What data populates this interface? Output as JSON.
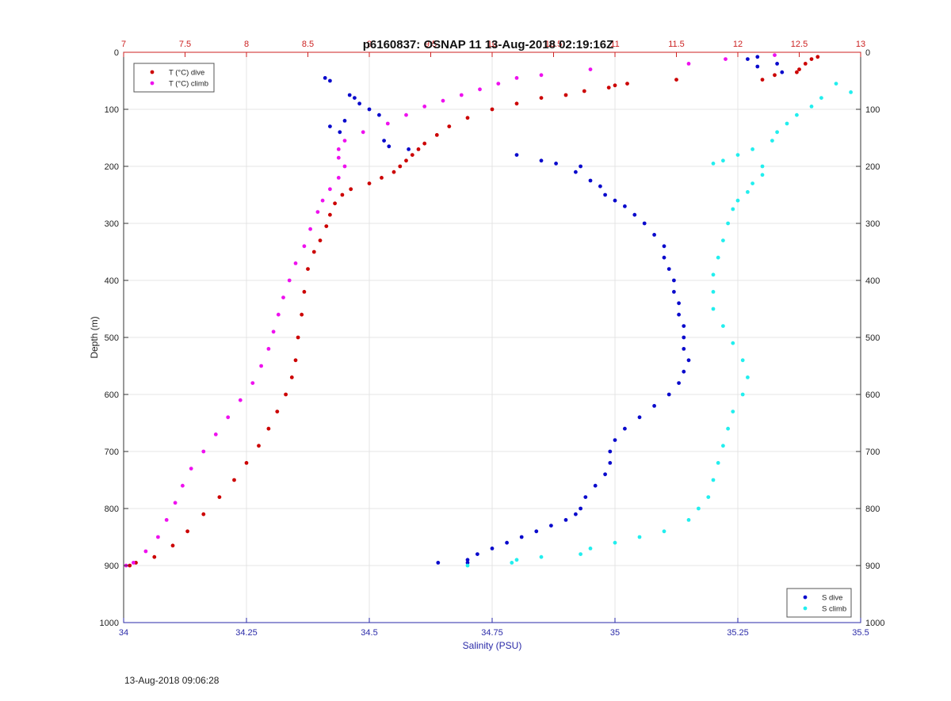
{
  "footer_timestamp": "13-Aug-2018 09:06:28",
  "chart_data": {
    "type": "scatter",
    "title": "p6160837: OSNAP 11 13-Aug-2018 02:19:16Z",
    "ylabel": "Depth (m)",
    "xlabel_bottom": "Salinity (PSU)",
    "xlabel_top": "",
    "ylim": [
      0,
      1000
    ],
    "y_reversed": true,
    "xlim_bottom": [
      34,
      35.5
    ],
    "xlim_top": [
      7,
      13
    ],
    "y_ticks": [
      "0",
      "100",
      "200",
      "300",
      "400",
      "500",
      "600",
      "700",
      "800",
      "900",
      "1000"
    ],
    "bottom_ticks": [
      "34",
      "34.25",
      "34.5",
      "34.75",
      "35",
      "35.25",
      "35.5"
    ],
    "top_ticks": [
      "7",
      "7.5",
      "8",
      "8.5",
      "9",
      "9.5",
      "10",
      "10.5",
      "11",
      "11.5",
      "12",
      "12.5",
      "13"
    ],
    "grid": true,
    "colors": {
      "t_dive": "#cc0000",
      "t_climb": "#ee11ee",
      "s_dive": "#0a0acc",
      "s_climb": "#22eeee",
      "bottom_axis": "#2a2aa8",
      "top_axis": "#cc2222",
      "grid": "#e4e4e4"
    },
    "legend_top_left": {
      "placement": "top-left",
      "entries": [
        {
          "label": "T (°C) dive",
          "series": "t_dive"
        },
        {
          "label": "T (°C) climb",
          "series": "t_climb"
        }
      ]
    },
    "legend_bottom_right": {
      "placement": "bottom-right",
      "entries": [
        {
          "label": "S dive",
          "series": "s_dive"
        },
        {
          "label": "S climb",
          "series": "s_climb"
        }
      ]
    },
    "series": [
      {
        "key": "t_dive",
        "name": "T (°C) dive",
        "axis": "top",
        "points": [
          [
            12.65,
            8
          ],
          [
            12.6,
            12
          ],
          [
            12.55,
            20
          ],
          [
            12.5,
            30
          ],
          [
            12.48,
            35
          ],
          [
            12.3,
            40
          ],
          [
            12.2,
            48
          ],
          [
            11.5,
            48
          ],
          [
            11.1,
            55
          ],
          [
            11.0,
            58
          ],
          [
            10.95,
            62
          ],
          [
            10.75,
            68
          ],
          [
            10.6,
            75
          ],
          [
            10.4,
            80
          ],
          [
            10.2,
            90
          ],
          [
            10.0,
            100
          ],
          [
            9.8,
            115
          ],
          [
            9.65,
            130
          ],
          [
            9.55,
            145
          ],
          [
            9.45,
            160
          ],
          [
            9.4,
            170
          ],
          [
            9.35,
            180
          ],
          [
            9.3,
            190
          ],
          [
            9.25,
            200
          ],
          [
            9.2,
            210
          ],
          [
            9.1,
            220
          ],
          [
            9.0,
            230
          ],
          [
            8.85,
            240
          ],
          [
            8.78,
            250
          ],
          [
            8.72,
            265
          ],
          [
            8.68,
            285
          ],
          [
            8.65,
            305
          ],
          [
            8.6,
            330
          ],
          [
            8.55,
            350
          ],
          [
            8.5,
            380
          ],
          [
            8.47,
            420
          ],
          [
            8.45,
            460
          ],
          [
            8.42,
            500
          ],
          [
            8.4,
            540
          ],
          [
            8.37,
            570
          ],
          [
            8.32,
            600
          ],
          [
            8.25,
            630
          ],
          [
            8.18,
            660
          ],
          [
            8.1,
            690
          ],
          [
            8.0,
            720
          ],
          [
            7.9,
            750
          ],
          [
            7.78,
            780
          ],
          [
            7.65,
            810
          ],
          [
            7.52,
            840
          ],
          [
            7.4,
            865
          ],
          [
            7.25,
            885
          ],
          [
            7.1,
            895
          ],
          [
            7.05,
            900
          ]
        ]
      },
      {
        "key": "t_climb",
        "name": "T (°C) climb",
        "axis": "top",
        "points": [
          [
            12.3,
            5
          ],
          [
            11.9,
            12
          ],
          [
            11.6,
            20
          ],
          [
            10.8,
            30
          ],
          [
            10.4,
            40
          ],
          [
            10.2,
            45
          ],
          [
            10.05,
            55
          ],
          [
            9.9,
            65
          ],
          [
            9.75,
            75
          ],
          [
            9.6,
            85
          ],
          [
            9.45,
            95
          ],
          [
            9.3,
            110
          ],
          [
            9.15,
            125
          ],
          [
            8.95,
            140
          ],
          [
            8.8,
            155
          ],
          [
            8.75,
            170
          ],
          [
            8.75,
            185
          ],
          [
            8.8,
            200
          ],
          [
            8.75,
            220
          ],
          [
            8.68,
            240
          ],
          [
            8.62,
            260
          ],
          [
            8.58,
            280
          ],
          [
            8.52,
            310
          ],
          [
            8.47,
            340
          ],
          [
            8.4,
            370
          ],
          [
            8.35,
            400
          ],
          [
            8.3,
            430
          ],
          [
            8.26,
            460
          ],
          [
            8.22,
            490
          ],
          [
            8.18,
            520
          ],
          [
            8.12,
            550
          ],
          [
            8.05,
            580
          ],
          [
            7.95,
            610
          ],
          [
            7.85,
            640
          ],
          [
            7.75,
            670
          ],
          [
            7.65,
            700
          ],
          [
            7.55,
            730
          ],
          [
            7.48,
            760
          ],
          [
            7.42,
            790
          ],
          [
            7.35,
            820
          ],
          [
            7.28,
            850
          ],
          [
            7.18,
            875
          ],
          [
            7.08,
            895
          ],
          [
            7.02,
            900
          ]
        ]
      },
      {
        "key": "s_dive",
        "name": "S dive",
        "axis": "bottom",
        "points": [
          [
            35.29,
            8
          ],
          [
            35.27,
            12
          ],
          [
            35.33,
            20
          ],
          [
            35.29,
            25
          ],
          [
            35.34,
            35
          ],
          [
            34.41,
            45
          ],
          [
            34.42,
            50
          ],
          [
            34.46,
            75
          ],
          [
            34.47,
            80
          ],
          [
            34.48,
            90
          ],
          [
            34.5,
            100
          ],
          [
            34.52,
            110
          ],
          [
            34.45,
            120
          ],
          [
            34.42,
            130
          ],
          [
            34.44,
            140
          ],
          [
            34.53,
            155
          ],
          [
            34.54,
            165
          ],
          [
            34.58,
            170
          ],
          [
            34.8,
            180
          ],
          [
            34.85,
            190
          ],
          [
            34.88,
            195
          ],
          [
            34.93,
            200
          ],
          [
            34.92,
            210
          ],
          [
            34.95,
            225
          ],
          [
            34.97,
            235
          ],
          [
            34.98,
            250
          ],
          [
            35.0,
            260
          ],
          [
            35.02,
            270
          ],
          [
            35.04,
            285
          ],
          [
            35.06,
            300
          ],
          [
            35.08,
            320
          ],
          [
            35.1,
            340
          ],
          [
            35.1,
            360
          ],
          [
            35.11,
            380
          ],
          [
            35.12,
            400
          ],
          [
            35.12,
            420
          ],
          [
            35.13,
            440
          ],
          [
            35.13,
            460
          ],
          [
            35.14,
            480
          ],
          [
            35.14,
            500
          ],
          [
            35.14,
            520
          ],
          [
            35.15,
            540
          ],
          [
            35.14,
            560
          ],
          [
            35.13,
            580
          ],
          [
            35.11,
            600
          ],
          [
            35.08,
            620
          ],
          [
            35.05,
            640
          ],
          [
            35.02,
            660
          ],
          [
            35.0,
            680
          ],
          [
            34.99,
            700
          ],
          [
            34.99,
            720
          ],
          [
            34.98,
            740
          ],
          [
            34.96,
            760
          ],
          [
            34.94,
            780
          ],
          [
            34.93,
            800
          ],
          [
            34.92,
            810
          ],
          [
            34.9,
            820
          ],
          [
            34.87,
            830
          ],
          [
            34.84,
            840
          ],
          [
            34.81,
            850
          ],
          [
            34.78,
            860
          ],
          [
            34.75,
            870
          ],
          [
            34.72,
            880
          ],
          [
            34.7,
            890
          ],
          [
            34.7,
            895
          ],
          [
            34.64,
            895
          ]
        ]
      },
      {
        "key": "s_climb",
        "name": "S climb",
        "axis": "bottom",
        "points": [
          [
            35.45,
            55
          ],
          [
            35.48,
            70
          ],
          [
            35.42,
            80
          ],
          [
            35.4,
            95
          ],
          [
            35.37,
            110
          ],
          [
            35.35,
            125
          ],
          [
            35.33,
            140
          ],
          [
            35.32,
            155
          ],
          [
            35.28,
            170
          ],
          [
            35.25,
            180
          ],
          [
            35.22,
            190
          ],
          [
            35.2,
            195
          ],
          [
            35.3,
            200
          ],
          [
            35.3,
            215
          ],
          [
            35.28,
            230
          ],
          [
            35.27,
            245
          ],
          [
            35.25,
            260
          ],
          [
            35.24,
            275
          ],
          [
            35.23,
            300
          ],
          [
            35.22,
            330
          ],
          [
            35.21,
            360
          ],
          [
            35.2,
            390
          ],
          [
            35.2,
            420
          ],
          [
            35.2,
            450
          ],
          [
            35.22,
            480
          ],
          [
            35.24,
            510
          ],
          [
            35.26,
            540
          ],
          [
            35.27,
            570
          ],
          [
            35.26,
            600
          ],
          [
            35.24,
            630
          ],
          [
            35.23,
            660
          ],
          [
            35.22,
            690
          ],
          [
            35.21,
            720
          ],
          [
            35.2,
            750
          ],
          [
            35.19,
            780
          ],
          [
            35.17,
            800
          ],
          [
            35.15,
            820
          ],
          [
            35.1,
            840
          ],
          [
            35.05,
            850
          ],
          [
            35.0,
            860
          ],
          [
            34.95,
            870
          ],
          [
            34.93,
            880
          ],
          [
            34.85,
            885
          ],
          [
            34.8,
            890
          ],
          [
            34.79,
            895
          ],
          [
            34.7,
            900
          ]
        ]
      }
    ]
  }
}
